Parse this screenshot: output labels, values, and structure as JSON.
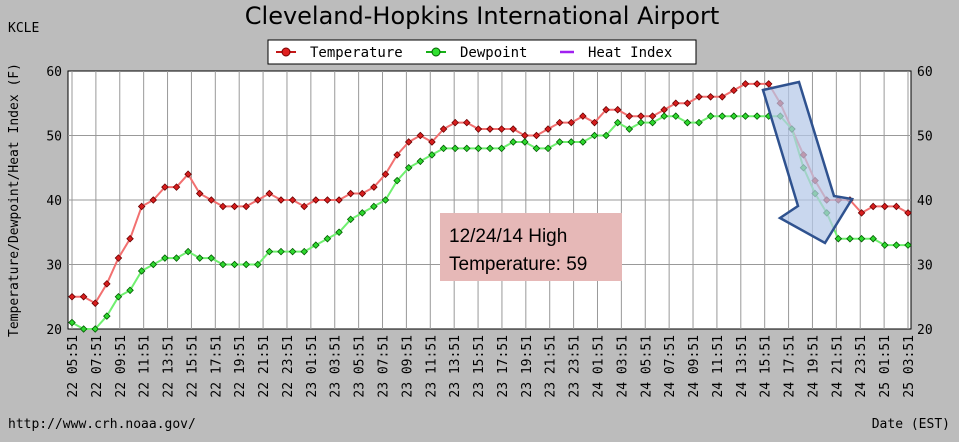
{
  "station": "KCLE",
  "title": "Cleveland-Hopkins International Airport",
  "legend": {
    "temperature": "Temperature",
    "dewpoint": "Dewpoint",
    "heat_index": "Heat Index"
  },
  "ylabel": "Temperature/Dewpoint/Heat Index (F)",
  "xlabel": "Date (EST)",
  "source_url": "http://www.crh.noaa.gov/",
  "annotation": {
    "line1": "12/24/14 High",
    "line2": "Temperature: 59"
  },
  "colors": {
    "background": "#bcbcbc",
    "plot": "#ffffff",
    "temperature_line": "#f27070",
    "temperature_marker": "#c41818",
    "dewpoint_line": "#70f070",
    "dewpoint_marker": "#18b018",
    "heat_index": "#a020f0",
    "annotation_box": "#e6b8b7",
    "arrow_fill": "#b4c7e7",
    "arrow_stroke": "#2f528f"
  },
  "chart_data": {
    "type": "line",
    "title": "Cleveland-Hopkins International Airport",
    "xlabel": "Date (EST)",
    "ylabel": "Temperature/Dewpoint/Heat Index (F)",
    "ylim": [
      20,
      60
    ],
    "yticks": [
      20,
      30,
      40,
      50,
      60
    ],
    "grid": true,
    "legend_position": "top",
    "x_tick_labels": [
      "22 05:51",
      "22 07:51",
      "22 09:51",
      "22 11:51",
      "22 13:51",
      "22 15:51",
      "22 17:51",
      "22 19:51",
      "22 21:51",
      "22 23:51",
      "23 01:51",
      "23 03:51",
      "23 05:51",
      "23 07:51",
      "23 09:51",
      "23 11:51",
      "23 13:51",
      "23 15:51",
      "23 17:51",
      "23 19:51",
      "23 21:51",
      "23 23:51",
      "24 01:51",
      "24 03:51",
      "24 05:51",
      "24 07:51",
      "24 09:51",
      "24 11:51",
      "24 13:51",
      "24 15:51",
      "24 17:51",
      "24 19:51",
      "24 21:51",
      "24 23:51",
      "25 01:51",
      "25 03:51"
    ],
    "series": [
      {
        "name": "Temperature",
        "values": [
          25,
          25,
          24,
          27,
          31,
          34,
          39,
          40,
          42,
          42,
          44,
          41,
          40,
          39,
          39,
          39,
          40,
          41,
          40,
          40,
          39,
          40,
          40,
          40,
          41,
          41,
          42,
          44,
          47,
          49,
          50,
          49,
          51,
          52,
          52,
          51,
          51,
          51,
          51,
          50,
          50,
          51,
          52,
          52,
          53,
          52,
          54,
          54,
          53,
          53,
          53,
          54,
          55,
          55,
          56,
          56,
          56,
          57,
          58,
          58,
          58,
          55,
          51,
          47,
          43,
          40,
          40,
          40,
          38,
          39,
          39,
          39,
          38
        ]
      },
      {
        "name": "Dewpoint",
        "values": [
          21,
          20,
          20,
          22,
          25,
          26,
          29,
          30,
          31,
          31,
          32,
          31,
          31,
          30,
          30,
          30,
          30,
          32,
          32,
          32,
          32,
          33,
          34,
          35,
          37,
          38,
          39,
          40,
          43,
          45,
          46,
          47,
          48,
          48,
          48,
          48,
          48,
          48,
          49,
          49,
          48,
          48,
          49,
          49,
          49,
          50,
          50,
          52,
          51,
          52,
          52,
          53,
          53,
          52,
          52,
          53,
          53,
          53,
          53,
          53,
          53,
          53,
          51,
          45,
          41,
          38,
          34,
          34,
          34,
          34,
          33,
          33,
          33
        ]
      }
    ]
  }
}
